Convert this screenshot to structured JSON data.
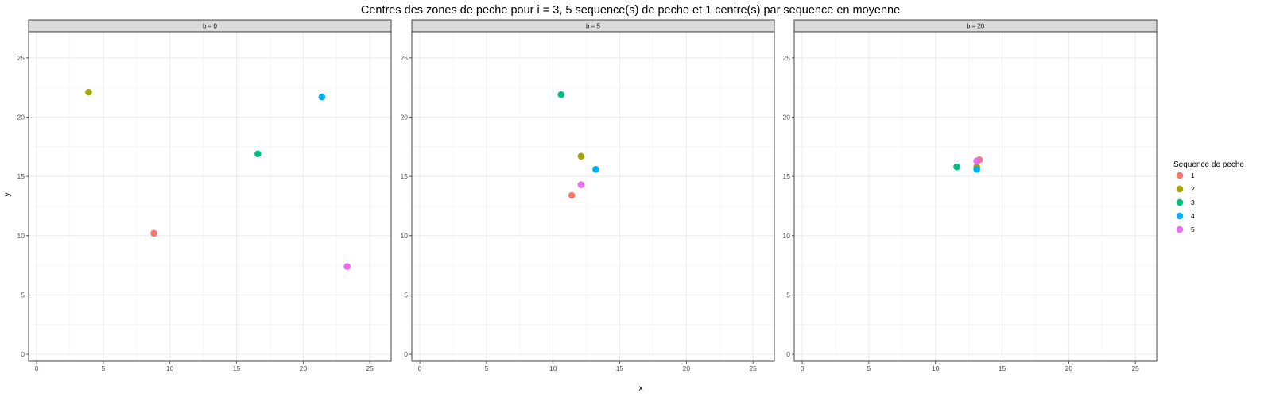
{
  "chart_data": {
    "type": "scatter",
    "title": "Centres des zones de peche pour i = 3, 5 sequence(s) de peche et 1 centre(s) par sequence en moyenne",
    "xlabel": "x",
    "ylabel": "y",
    "xlim": [
      -0.6,
      26.6
    ],
    "ylim": [
      -0.6,
      27.2
    ],
    "x_ticks": [
      0,
      5,
      10,
      15,
      20,
      25
    ],
    "y_ticks": [
      0,
      5,
      10,
      15,
      20,
      25
    ],
    "grid": true,
    "legend": {
      "title": "Sequence de peche",
      "placement": "right",
      "entries": [
        {
          "label": "1",
          "color": "#F8766D"
        },
        {
          "label": "2",
          "color": "#A3A500"
        },
        {
          "label": "3",
          "color": "#00BF7D"
        },
        {
          "label": "4",
          "color": "#00B0F6"
        },
        {
          "label": "5",
          "color": "#E76BF3"
        }
      ]
    },
    "panels": [
      {
        "strip": "b = 0",
        "points": [
          {
            "series": "1",
            "x": 8.8,
            "y": 10.2
          },
          {
            "series": "2",
            "x": 3.9,
            "y": 22.1
          },
          {
            "series": "3",
            "x": 16.6,
            "y": 16.9
          },
          {
            "series": "4",
            "x": 21.4,
            "y": 21.7
          },
          {
            "series": "5",
            "x": 23.3,
            "y": 7.4
          }
        ]
      },
      {
        "strip": "b = 5",
        "points": [
          {
            "series": "1",
            "x": 11.4,
            "y": 13.4
          },
          {
            "series": "2",
            "x": 12.1,
            "y": 16.7
          },
          {
            "series": "3",
            "x": 10.6,
            "y": 21.9
          },
          {
            "series": "4",
            "x": 13.2,
            "y": 15.6
          },
          {
            "series": "5",
            "x": 12.1,
            "y": 14.3
          }
        ]
      },
      {
        "strip": "b = 20",
        "points": [
          {
            "series": "1",
            "x": 13.3,
            "y": 16.4
          },
          {
            "series": "2",
            "x": 13.1,
            "y": 15.8
          },
          {
            "series": "3",
            "x": 11.6,
            "y": 15.8
          },
          {
            "series": "4",
            "x": 13.1,
            "y": 15.6
          },
          {
            "series": "5",
            "x": 13.1,
            "y": 16.3
          }
        ]
      }
    ]
  }
}
